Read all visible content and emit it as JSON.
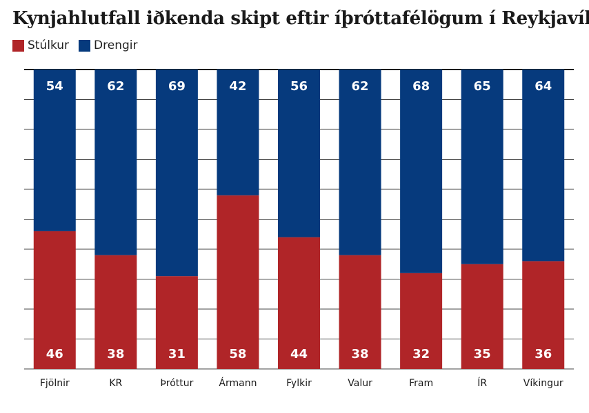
{
  "chart_data": {
    "type": "bar",
    "stacked": true,
    "title": "Kynjahlutfall iðkenda skipt eftir íþróttafélögum í Reykjavík",
    "categories": [
      "Fjölnir",
      "KR",
      "Þróttur",
      "Ármann",
      "Fylkir",
      "Valur",
      "Fram",
      "ÍR",
      "Víkingur"
    ],
    "series": [
      {
        "name": "Stúlkur",
        "color": "#b02528",
        "values": [
          46,
          38,
          31,
          58,
          44,
          38,
          32,
          35,
          36
        ]
      },
      {
        "name": "Drengir",
        "color": "#063a7d",
        "values": [
          54,
          62,
          69,
          42,
          56,
          62,
          68,
          65,
          64
        ]
      }
    ],
    "ylim": [
      0,
      100
    ],
    "grid": true,
    "legend_position": "top-left"
  }
}
